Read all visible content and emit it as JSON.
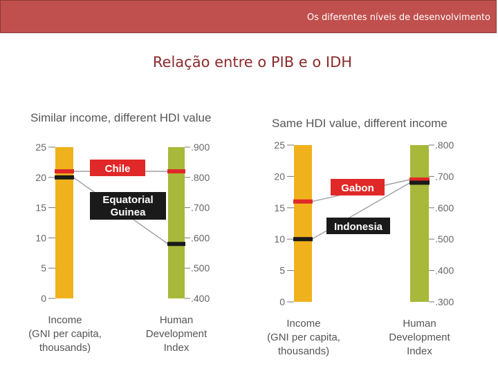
{
  "header": {
    "banner": "Os diferentes níveis de desenvolvimento",
    "title": "Relação entre o PIB e o IDH"
  },
  "colors": {
    "income_bar": "#f0b21c",
    "hdi_bar": "#a8b83a",
    "red": "#e02828",
    "black": "#1a1a1a",
    "connector": "#999999"
  },
  "chart_data": [
    {
      "type": "dual-axis-slope",
      "title": "Similar income, different HDI value",
      "left_axis": {
        "label": [
          "Income",
          "(GNI per capita,",
          "thousands)"
        ],
        "range": [
          0,
          25
        ],
        "ticks": [
          "0",
          "5",
          "10",
          "15",
          "20",
          "25"
        ]
      },
      "right_axis": {
        "label": [
          "Human",
          "Development",
          "Index"
        ],
        "range": [
          0.4,
          0.9
        ],
        "ticks": [
          ".400",
          ".500",
          ".600",
          ".700",
          ".800",
          ".900"
        ]
      },
      "countries": [
        {
          "name": [
            "Chile"
          ],
          "income": 21,
          "hdi": 0.82,
          "color": "red"
        },
        {
          "name": [
            "Equatorial",
            "Guinea"
          ],
          "income": 20,
          "hdi": 0.58,
          "color": "black"
        }
      ]
    },
    {
      "type": "dual-axis-slope",
      "title": "Same HDI value, different income",
      "left_axis": {
        "label": [
          "Income",
          "(GNI per capita,",
          "thousands)"
        ],
        "range": [
          0,
          25
        ],
        "ticks": [
          "0",
          "5",
          "10",
          "15",
          "20",
          "25"
        ]
      },
      "right_axis": {
        "label": [
          "Human",
          "Development",
          "Index"
        ],
        "range": [
          0.3,
          0.8
        ],
        "ticks": [
          ".300",
          ".400",
          ".500",
          ".600",
          ".700",
          ".800"
        ]
      },
      "countries": [
        {
          "name": [
            "Gabon"
          ],
          "income": 16,
          "hdi": 0.69,
          "color": "red"
        },
        {
          "name": [
            "Indonesia"
          ],
          "income": 10,
          "hdi": 0.68,
          "color": "black"
        }
      ]
    }
  ]
}
